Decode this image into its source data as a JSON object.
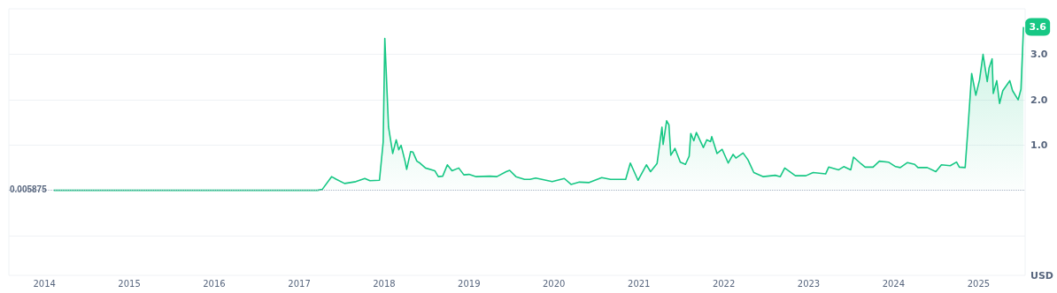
{
  "chart_data": {
    "type": "area",
    "color": "#16c784",
    "x": [
      "2014-02-10",
      "2014-06-01",
      "2014-12-15",
      "2015-06-01",
      "2016-01-01",
      "2016-06-01",
      "2017-01-01",
      "2017-03-20",
      "2017-04-10",
      "2017-05-20",
      "2017-06-10",
      "2017-07-15",
      "2017-09-01",
      "2017-10-10",
      "2017-11-01",
      "2017-12-12",
      "2017-12-28",
      "2018-01-04",
      "2018-01-20",
      "2018-02-07",
      "2018-02-22",
      "2018-03-05",
      "2018-03-15",
      "2018-04-01",
      "2018-04-08",
      "2018-04-25",
      "2018-05-05",
      "2018-05-22",
      "2018-06-01",
      "2018-06-28",
      "2018-08-07",
      "2018-08-22",
      "2018-09-10",
      "2018-09-30",
      "2018-10-20",
      "2018-11-18",
      "2018-12-10",
      "2019-01-01",
      "2019-02-01",
      "2019-04-01",
      "2019-05-01",
      "2019-06-10",
      "2019-06-25",
      "2019-07-22",
      "2019-08-28",
      "2019-09-20",
      "2019-10-15",
      "2019-12-25",
      "2020-02-15",
      "2020-03-15",
      "2020-04-20",
      "2020-06-01",
      "2020-07-25",
      "2020-09-01",
      "2020-11-05",
      "2020-11-25",
      "2020-12-28",
      "2021-02-02",
      "2021-02-20",
      "2021-03-20",
      "2021-04-10",
      "2021-04-15",
      "2021-04-30",
      "2021-05-10",
      "2021-05-18",
      "2021-06-05",
      "2021-06-28",
      "2021-07-20",
      "2021-08-05",
      "2021-08-12",
      "2021-08-25",
      "2021-09-05",
      "2021-10-05",
      "2021-10-20",
      "2021-11-05",
      "2021-11-10",
      "2021-12-03",
      "2021-12-25",
      "2022-01-20",
      "2022-02-10",
      "2022-02-22",
      "2022-03-25",
      "2022-04-15",
      "2022-05-10",
      "2022-06-20",
      "2022-08-10",
      "2022-09-01",
      "2022-09-20",
      "2022-11-05",
      "2022-12-20",
      "2023-01-20",
      "2023-03-15",
      "2023-03-28",
      "2023-05-10",
      "2023-06-01",
      "2023-07-01",
      "2023-07-13",
      "2023-08-15",
      "2023-09-01",
      "2023-10-05",
      "2023-11-01",
      "2023-12-10",
      "2024-01-10",
      "2024-01-30",
      "2024-03-01",
      "2024-04-01",
      "2024-04-15",
      "2024-05-25",
      "2024-07-01",
      "2024-07-25",
      "2024-09-01",
      "2024-09-28",
      "2024-10-10",
      "2024-11-04",
      "2024-11-16",
      "2024-12-02",
      "2024-12-20",
      "2025-01-05",
      "2025-01-20",
      "2025-02-07",
      "2025-02-15",
      "2025-02-28",
      "2025-03-05",
      "2025-03-20",
      "2025-04-01",
      "2025-04-15",
      "2025-05-15",
      "2025-05-27",
      "2025-06-20",
      "2025-07-02",
      "2025-07-13"
    ],
    "values": [
      0.01,
      0.01,
      0.01,
      0.01,
      0.01,
      0.01,
      0.01,
      0.01,
      0.03,
      0.31,
      0.25,
      0.16,
      0.2,
      0.27,
      0.22,
      0.23,
      1.07,
      3.35,
      1.4,
      0.82,
      1.12,
      0.9,
      1.0,
      0.65,
      0.47,
      0.86,
      0.85,
      0.65,
      0.62,
      0.5,
      0.44,
      0.31,
      0.32,
      0.57,
      0.44,
      0.5,
      0.35,
      0.36,
      0.31,
      0.32,
      0.31,
      0.42,
      0.45,
      0.31,
      0.25,
      0.25,
      0.28,
      0.2,
      0.27,
      0.14,
      0.19,
      0.18,
      0.29,
      0.25,
      0.25,
      0.61,
      0.23,
      0.57,
      0.42,
      0.6,
      1.4,
      1.02,
      1.54,
      1.45,
      0.78,
      0.93,
      0.63,
      0.58,
      0.76,
      1.26,
      1.1,
      1.28,
      0.95,
      1.12,
      1.08,
      1.19,
      0.82,
      0.91,
      0.61,
      0.8,
      0.72,
      0.83,
      0.68,
      0.4,
      0.31,
      0.34,
      0.31,
      0.5,
      0.33,
      0.33,
      0.4,
      0.37,
      0.52,
      0.46,
      0.53,
      0.46,
      0.74,
      0.59,
      0.52,
      0.52,
      0.65,
      0.63,
      0.53,
      0.51,
      0.62,
      0.58,
      0.51,
      0.51,
      0.42,
      0.57,
      0.55,
      0.63,
      0.52,
      0.51,
      1.36,
      2.58,
      2.1,
      2.44,
      3.0,
      2.4,
      2.7,
      2.9,
      2.14,
      2.42,
      1.92,
      2.2,
      2.42,
      2.2,
      2.0,
      2.23,
      3.6
    ],
    "xlim": [
      "2013-08-01",
      "2025-07-20"
    ],
    "xticks": [
      "2014",
      "2015",
      "2016",
      "2017",
      "2018",
      "2019",
      "2020",
      "2021",
      "2022",
      "2023",
      "2024",
      "2025"
    ],
    "ylim": [
      -1.86,
      4
    ],
    "yticks": [
      {
        "value": -1,
        "label": null
      },
      {
        "value": 1,
        "label": "1.0"
      },
      {
        "value": 2,
        "label": "2.0"
      },
      {
        "value": 3,
        "label": "3.0"
      }
    ],
    "grid": "y",
    "marker": "none",
    "ref_lines": [
      {
        "axis": "y",
        "value": 0.005875,
        "label": "0.005875",
        "line_style": "dotted",
        "color": "#a6b0c3"
      }
    ],
    "annotations": [
      {
        "text": "3.6",
        "x": "2025-07-13",
        "y": 3.6
      },
      "USD"
    ]
  }
}
